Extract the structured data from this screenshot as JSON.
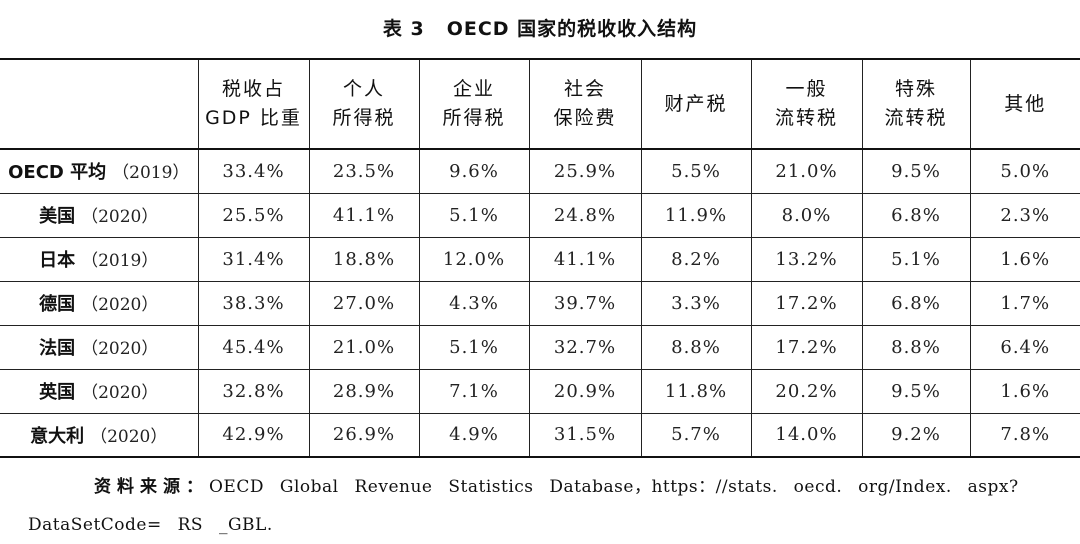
{
  "caption": {
    "number": "表 3",
    "title": "OECD 国家的税收收入结构"
  },
  "headers": [
    {
      "line1": "",
      "line2": ""
    },
    {
      "line1": "税收占",
      "line2": "GDP 比重"
    },
    {
      "line1": "个人",
      "line2": "所得税"
    },
    {
      "line1": "企业",
      "line2": "所得税"
    },
    {
      "line1": "社会",
      "line2": "保险费"
    },
    {
      "line1": "财产税",
      "line2": ""
    },
    {
      "line1": "一般",
      "line2": "流转税"
    },
    {
      "line1": "特殊",
      "line2": "流转税"
    },
    {
      "line1": "其他",
      "line2": ""
    }
  ],
  "rows": [
    {
      "name": "OECD 平均",
      "year": "（2019）",
      "cells": [
        "33.4%",
        "23.5%",
        "9.6%",
        "25.9%",
        "5.5%",
        "21.0%",
        "9.5%",
        "5.0%"
      ]
    },
    {
      "name": "美国",
      "year": "（2020）",
      "cells": [
        "25.5%",
        "41.1%",
        "5.1%",
        "24.8%",
        "11.9%",
        "8.0%",
        "6.8%",
        "2.3%"
      ]
    },
    {
      "name": "日本",
      "year": "（2019）",
      "cells": [
        "31.4%",
        "18.8%",
        "12.0%",
        "41.1%",
        "8.2%",
        "13.2%",
        "5.1%",
        "1.6%"
      ]
    },
    {
      "name": "德国",
      "year": "（2020）",
      "cells": [
        "38.3%",
        "27.0%",
        "4.3%",
        "39.7%",
        "3.3%",
        "17.2%",
        "6.8%",
        "1.7%"
      ]
    },
    {
      "name": "法国",
      "year": "（2020）",
      "cells": [
        "45.4%",
        "21.0%",
        "5.1%",
        "32.7%",
        "8.8%",
        "17.2%",
        "8.8%",
        "6.4%"
      ]
    },
    {
      "name": "英国",
      "year": "（2020）",
      "cells": [
        "32.8%",
        "28.9%",
        "7.1%",
        "20.9%",
        "11.8%",
        "20.2%",
        "9.5%",
        "1.6%"
      ]
    },
    {
      "name": "意大利",
      "year": "（2020）",
      "cells": [
        "42.9%",
        "26.9%",
        "4.9%",
        "31.5%",
        "5.7%",
        "14.0%",
        "9.2%",
        "7.8%"
      ]
    }
  ],
  "source": {
    "label": "资料来源：",
    "text": "OECD Global Revenue Statistics Database，https：//stats. oecd. org/Index. aspx?DataSetCode= RS _GBL."
  }
}
